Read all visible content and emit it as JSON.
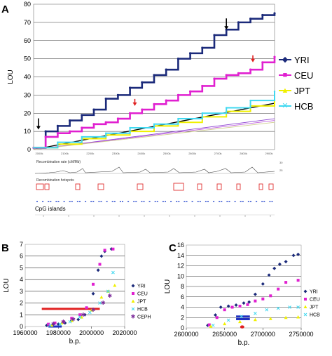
{
  "panels": {
    "a": {
      "letter": "A"
    },
    "b": {
      "letter": "B"
    },
    "c": {
      "letter": "C"
    }
  },
  "tracks": {
    "recomb_rate_label": "Recombination rate (cM/Mb)",
    "hotspots_label": "Recombination hotspots",
    "cpg_label": "CpG islands",
    "rate_ticks": [
      "30",
      "25"
    ]
  },
  "colors": {
    "YRI": "#1b2a7a",
    "CEU": "#e020d0",
    "JPT": "#f0f000",
    "HCB": "#40d8f0",
    "CEPH": "#7b2a9a",
    "arrow_black": "#000000",
    "arrow_red": "#e02020",
    "bar_red": "#e02020",
    "bar_blue": "#2030c0",
    "hotspot_red": "#e03030",
    "cpg_blue": "#3050d0"
  },
  "chart_data": [
    {
      "id": "A",
      "type": "line",
      "ylabel": "LOU",
      "ylim": [
        0,
        80
      ],
      "yticks": [
        0,
        10,
        20,
        30,
        40,
        50,
        60,
        70,
        80
      ],
      "xtick_labels": [
        "2000k",
        "2100k",
        "2200k",
        "2300k",
        "2400k",
        "2500k",
        "2600k",
        "2700k",
        "2800k",
        "2900k"
      ],
      "xlim": [
        0,
        100
      ],
      "grid": true,
      "legend_position": "right",
      "series": [
        {
          "name": "YRI",
          "x": [
            0,
            5,
            10,
            15,
            20,
            25,
            30,
            35,
            40,
            45,
            50,
            55,
            60,
            65,
            70,
            75,
            80,
            85,
            90,
            95,
            100
          ],
          "y": [
            1,
            10,
            13,
            16,
            19,
            22,
            28,
            30,
            34,
            37,
            41,
            44,
            50,
            53,
            56,
            63,
            66,
            70,
            72,
            74,
            75
          ]
        },
        {
          "name": "CEU",
          "x": [
            0,
            5,
            10,
            15,
            20,
            25,
            30,
            35,
            40,
            45,
            50,
            55,
            60,
            65,
            70,
            75,
            80,
            85,
            90,
            95,
            100
          ],
          "y": [
            1,
            7,
            9,
            10,
            12,
            14,
            15,
            17,
            20,
            22,
            25,
            27,
            30,
            32,
            35,
            39,
            41,
            42,
            44,
            48,
            51
          ]
        },
        {
          "name": "JPT",
          "x": [
            0,
            10,
            20,
            30,
            40,
            50,
            60,
            70,
            80,
            90,
            100
          ],
          "y": [
            1,
            3,
            6,
            8,
            10,
            13,
            15,
            18,
            21,
            24,
            27
          ]
        },
        {
          "name": "HCB",
          "x": [
            0,
            10,
            20,
            30,
            40,
            50,
            60,
            70,
            80,
            90,
            100
          ],
          "y": [
            1,
            4,
            7,
            9,
            12,
            14,
            17,
            20,
            23,
            27,
            32
          ]
        }
      ],
      "reference_lines": [
        {
          "x": [
            0,
            100
          ],
          "y": [
            0,
            25.5
          ]
        },
        {
          "x": [
            0,
            100
          ],
          "y": [
            0,
            17
          ]
        },
        {
          "x": [
            0,
            100
          ],
          "y": [
            0,
            16
          ]
        },
        {
          "x": [
            0,
            100
          ],
          "y": [
            0,
            15
          ]
        }
      ],
      "arrows": [
        {
          "x": 2,
          "y_tip": 11,
          "color": "black"
        },
        {
          "x": 80,
          "y_tip": 66,
          "color": "black"
        },
        {
          "x": 42,
          "y_tip": 24,
          "color": "red"
        },
        {
          "x": 91,
          "y_tip": 48,
          "color": "red"
        }
      ]
    },
    {
      "id": "B",
      "type": "scatter",
      "xlabel": "b.p.",
      "ylabel": "LOU",
      "xlim": [
        1960000,
        2020000
      ],
      "ylim": [
        0,
        7
      ],
      "xtick_labels": [
        "1960000",
        "1980000",
        "2000000",
        "2020000"
      ],
      "ytick_labels": [
        "0",
        "1",
        "2",
        "3",
        "4",
        "5",
        "6",
        "7"
      ],
      "legend_position": "right",
      "series": [
        {
          "name": "YRI",
          "x": [
            1973000,
            1977000,
            1980000,
            1984000,
            1988000,
            1992000,
            1996000,
            2001000,
            2004000,
            2006000,
            2008000,
            2012000
          ],
          "y": [
            0.1,
            0.2,
            0.2,
            0.3,
            0.5,
            0.6,
            1.0,
            2.8,
            4.8,
            6.0,
            6.4,
            6.6
          ]
        },
        {
          "name": "CEU",
          "x": [
            1974000,
            1978000,
            1983000,
            1988000,
            1993000,
            1997000,
            2001000,
            2005000,
            2008000,
            2013000
          ],
          "y": [
            0.2,
            0.3,
            0.4,
            0.7,
            1.0,
            1.6,
            3.6,
            5.3,
            6.5,
            6.6
          ]
        },
        {
          "name": "JPT",
          "x": [
            1976000,
            1982000,
            1988000,
            1994000,
            2000000,
            2006000,
            2010000,
            2014000
          ],
          "y": [
            0.1,
            0.3,
            0.5,
            0.8,
            1.4,
            2.5,
            3.0,
            3.5
          ]
        },
        {
          "name": "HCB",
          "x": [
            1975000,
            1981000,
            1987000,
            1993000,
            1999000,
            2005000,
            2010000,
            2013000
          ],
          "y": [
            0.1,
            0.2,
            0.4,
            0.8,
            1.2,
            2.0,
            3.0,
            4.6
          ]
        },
        {
          "name": "CEPH",
          "x": [
            1977000,
            1983000,
            1989000,
            1995000,
            2001000,
            2007000,
            2011000
          ],
          "y": [
            0.2,
            0.4,
            0.6,
            1.0,
            1.4,
            2.0,
            2.6
          ]
        }
      ],
      "bars": [
        {
          "x_start": 1970000,
          "x_end": 2005000,
          "y": 1.5,
          "color": "red"
        },
        {
          "x_start": 1974000,
          "x_end": 1982000,
          "y": 0,
          "color": "blue"
        }
      ]
    },
    {
      "id": "C",
      "type": "scatter",
      "xlabel": "b.p.",
      "ylabel": "LOU",
      "xlim": [
        2600000,
        2750000
      ],
      "ylim": [
        0,
        16
      ],
      "xtick_labels": [
        "2600000",
        "2650000",
        "2700000",
        "2750000"
      ],
      "ytick_labels": [
        "0",
        "2",
        "4",
        "6",
        "8",
        "10",
        "12",
        "14",
        "16"
      ],
      "legend_position": "right",
      "series": [
        {
          "name": "YRI",
          "x": [
            2628000,
            2638000,
            2645000,
            2655000,
            2665000,
            2675000,
            2682000,
            2690000,
            2700000,
            2708000,
            2715000,
            2722000,
            2730000,
            2740000,
            2746000
          ],
          "y": [
            0.5,
            2.5,
            4.0,
            4.2,
            4.4,
            4.8,
            5.0,
            6.5,
            8.5,
            10.2,
            11.5,
            12.3,
            12.8,
            14.0,
            14.2
          ]
        },
        {
          "name": "CEU",
          "x": [
            2630000,
            2640000,
            2650000,
            2660000,
            2670000,
            2680000,
            2690000,
            2700000,
            2710000,
            2720000,
            2730000,
            2746000
          ],
          "y": [
            0.6,
            2.0,
            3.5,
            4.0,
            4.2,
            4.5,
            5.2,
            5.6,
            6.2,
            7.5,
            8.8,
            9.2
          ]
        },
        {
          "name": "JPT",
          "x": [
            2632000,
            2650000,
            2670000,
            2690000,
            2710000,
            2730000,
            2746000
          ],
          "y": [
            0.3,
            0.8,
            1.2,
            1.6,
            1.8,
            2.0,
            2.1
          ]
        },
        {
          "name": "HCB",
          "x": [
            2635000,
            2655000,
            2672000,
            2690000,
            2705000,
            2720000,
            2735000,
            2746000
          ],
          "y": [
            0.5,
            1.5,
            2.2,
            2.8,
            3.5,
            3.8,
            4.0,
            4.0
          ]
        }
      ],
      "bars": [
        {
          "x_start": 2665000,
          "x_end": 2683000,
          "y": 2.2,
          "color": "blue"
        },
        {
          "x_start": 2665000,
          "x_end": 2683000,
          "y": 1.7,
          "color": "blue"
        }
      ],
      "marker": {
        "x": 2673000,
        "y": 0.2,
        "color": "red"
      }
    }
  ]
}
